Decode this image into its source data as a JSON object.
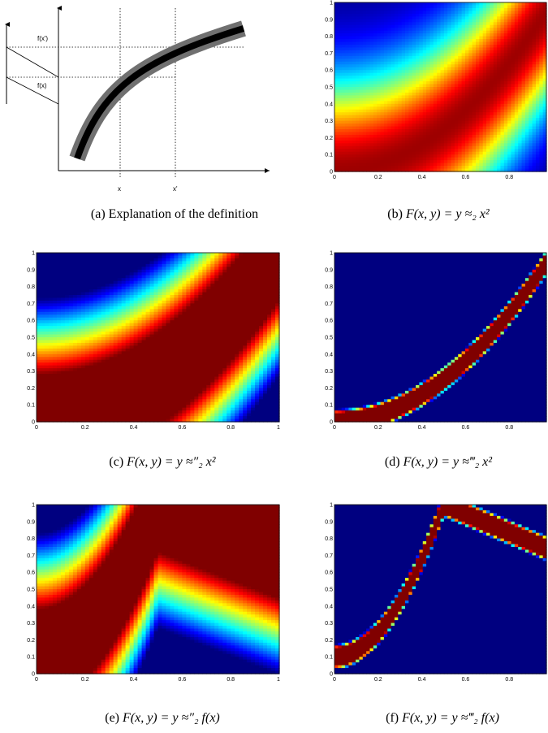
{
  "panels": [
    {
      "id": "a",
      "caption_label": "(a)",
      "caption_text": "Explanation of the definition",
      "diagram": {
        "labels": [
          "f(x')",
          "f(x)",
          "x",
          "x'"
        ]
      }
    },
    {
      "id": "b",
      "caption_label": "(b)",
      "caption_math": "F(x, y) = y ≈₂ x²",
      "xticks": [
        "0",
        "0.2",
        "0.4",
        "0.6",
        "0.8"
      ],
      "yticks": [
        "0",
        "0.1",
        "0.2",
        "0.3",
        "0.4",
        "0.5",
        "0.6",
        "0.7",
        "0.8",
        "0.9",
        "1"
      ]
    },
    {
      "id": "c",
      "caption_label": "(c)",
      "caption_math": "F(x, y) = y ≈″₂ x²",
      "xticks": [
        "0",
        "0.2",
        "0.4",
        "0.6",
        "0.8",
        "1"
      ],
      "yticks": [
        "0",
        "0.1",
        "0.2",
        "0.3",
        "0.4",
        "0.5",
        "0.6",
        "0.7",
        "0.8",
        "0.9",
        "1"
      ]
    },
    {
      "id": "d",
      "caption_label": "(d)",
      "caption_math": "F(x, y) = y ≈‴₂ x²",
      "xticks": [
        "0",
        "0.2",
        "0.4",
        "0.6",
        "0.8"
      ],
      "yticks": [
        "0",
        "0.1",
        "0.2",
        "0.3",
        "0.4",
        "0.5",
        "0.6",
        "0.7",
        "0.8",
        "0.9",
        "1"
      ]
    },
    {
      "id": "e",
      "caption_label": "(e)",
      "caption_math": "F(x, y) = y ≈″₂ f(x)",
      "xticks": [
        "0",
        "0.2",
        "0.4",
        "0.6",
        "0.8",
        "1"
      ],
      "yticks": [
        "0",
        "0.1",
        "0.2",
        "0.3",
        "0.4",
        "0.5",
        "0.6",
        "0.7",
        "0.8",
        "0.9",
        "1"
      ]
    },
    {
      "id": "f",
      "caption_label": "(f)",
      "caption_math": "F(x, y) = y ≈‴₂ f(x)",
      "xticks": [
        "0",
        "0.2",
        "0.4",
        "0.6",
        "0.8"
      ],
      "yticks": [
        "0",
        "0.1",
        "0.2",
        "0.3",
        "0.4",
        "0.5",
        "0.6",
        "0.7",
        "0.8",
        "0.9",
        "1"
      ]
    }
  ],
  "colormap": "jet"
}
